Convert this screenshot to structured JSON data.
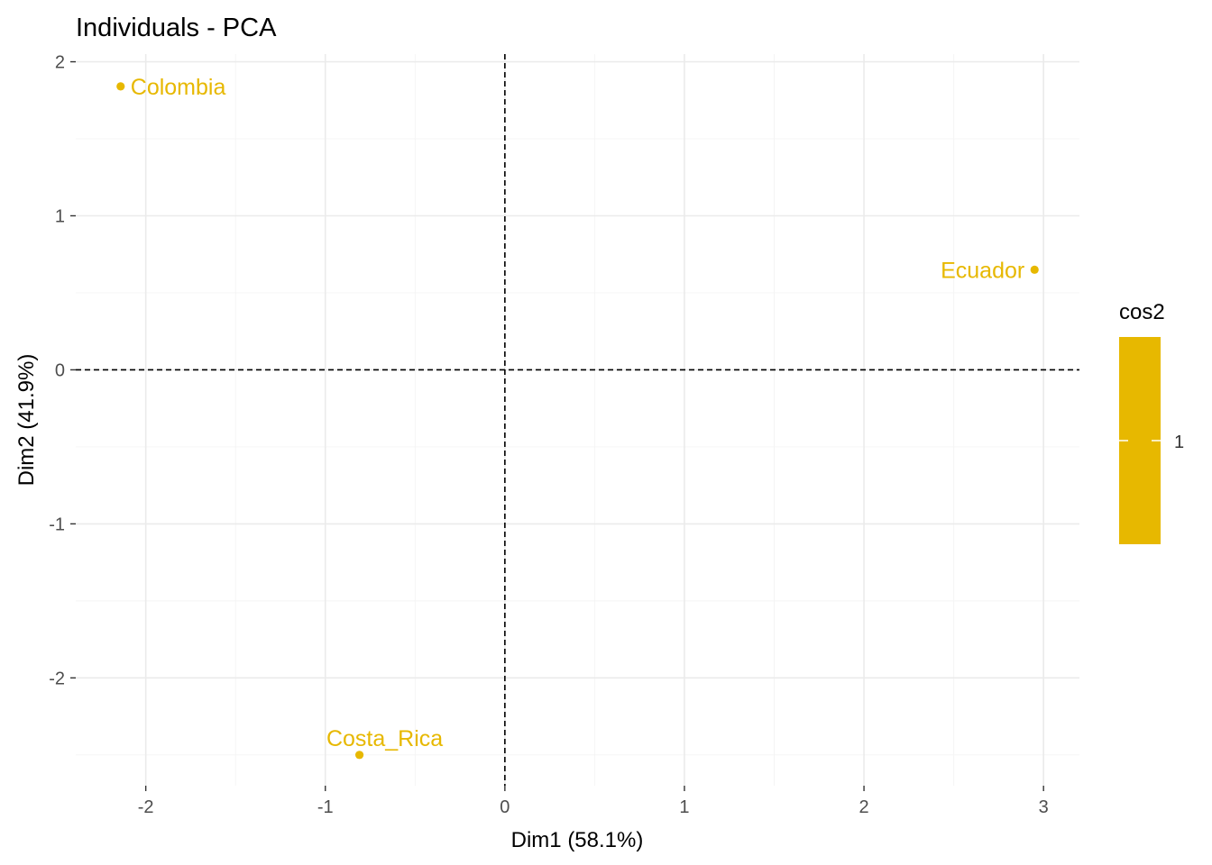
{
  "chart_data": {
    "type": "scatter",
    "title": "Individuals - PCA",
    "xlabel": "Dim1 (58.1%)",
    "ylabel": "Dim2 (41.9%)",
    "xlim": [
      -2.39,
      3.2
    ],
    "ylim": [
      -2.7,
      2.05
    ],
    "x_ticks": [
      -2,
      -1,
      0,
      1,
      2,
      3
    ],
    "y_ticks": [
      -2,
      -1,
      0,
      1,
      2
    ],
    "x_minor": [
      -1.5,
      -0.5,
      0.5,
      1.5,
      2.5
    ],
    "y_minor": [
      -2.5,
      -1.5,
      -0.5,
      0.5,
      1.5
    ],
    "grid": true,
    "reference_lines": {
      "x": 0,
      "y": 0,
      "style": "dashed"
    },
    "point_color": "#E7B800",
    "points": [
      {
        "label": "Colombia",
        "x": -2.14,
        "y": 1.84,
        "label_side": "right"
      },
      {
        "label": "Ecuador",
        "x": 2.95,
        "y": 0.65,
        "label_side": "left"
      },
      {
        "label": "Costa_Rica",
        "x": -0.81,
        "y": -2.5,
        "label_side": "above"
      }
    ],
    "legend": {
      "title": "cos2",
      "placement": "right",
      "color": "#E7B800",
      "labels": [
        "1"
      ]
    }
  }
}
